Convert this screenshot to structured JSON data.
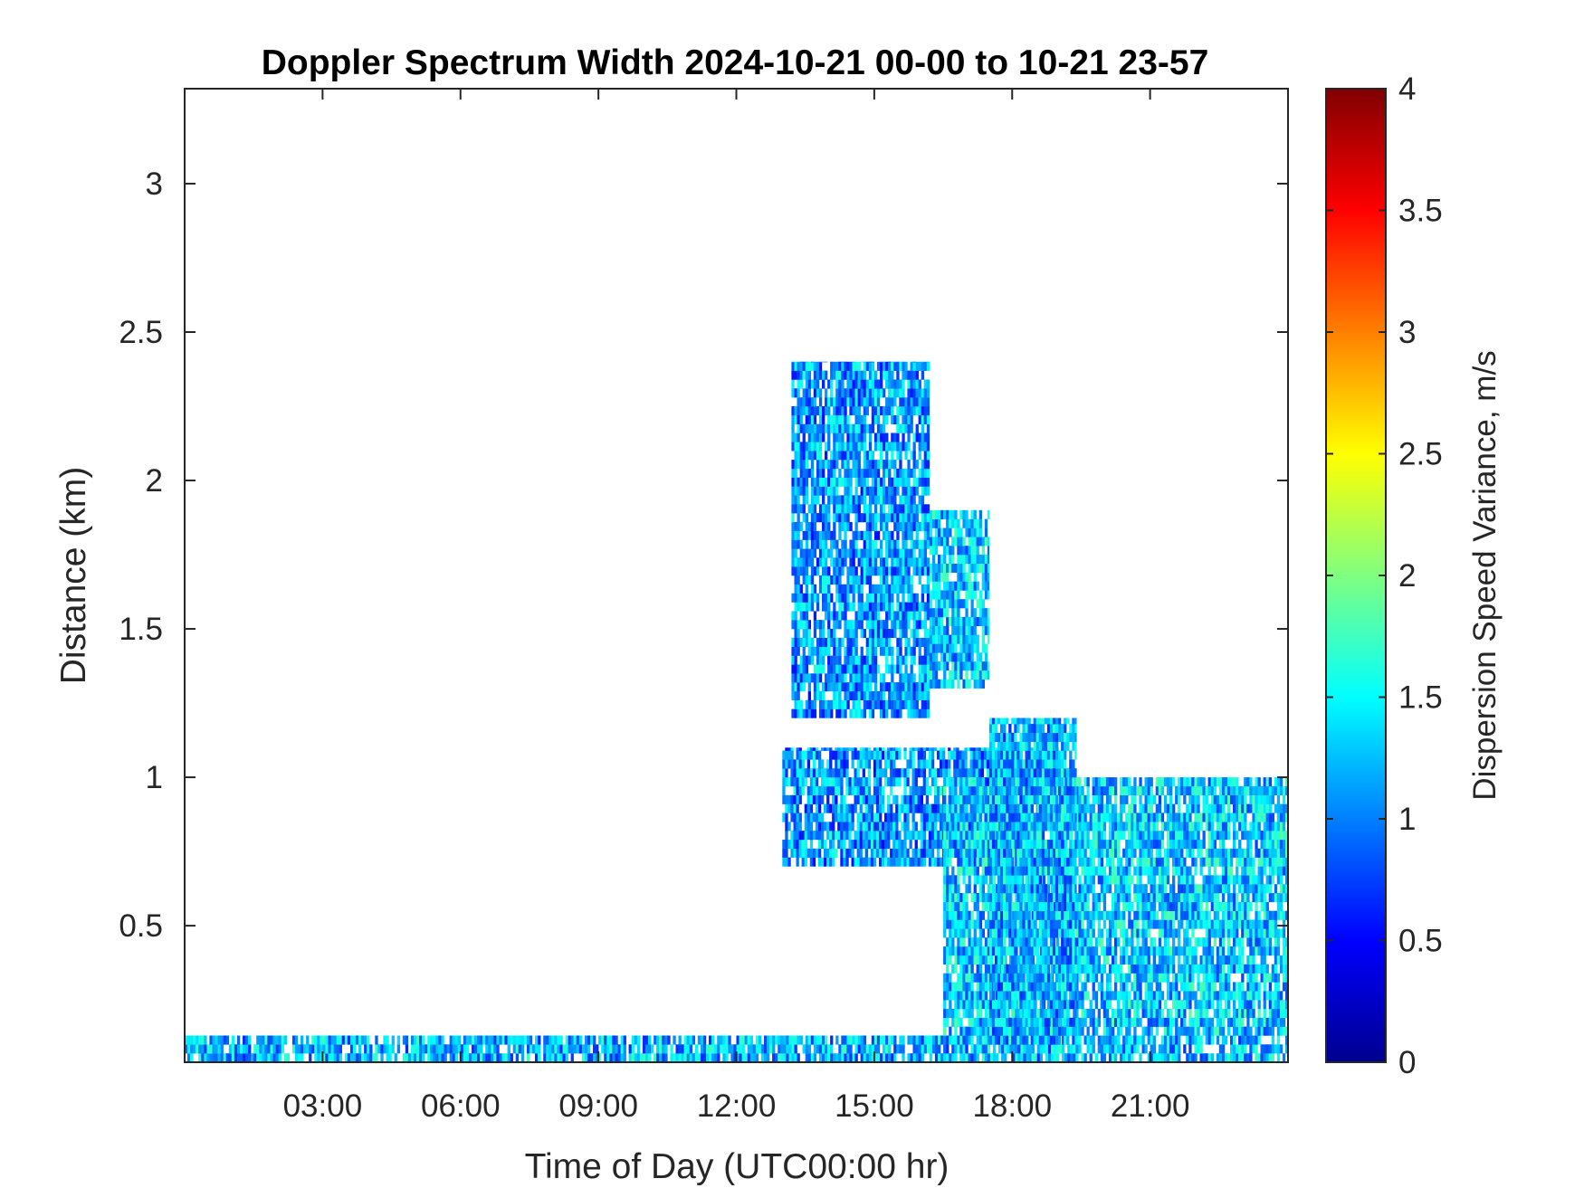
{
  "chart_data": {
    "type": "heatmap",
    "title": "Doppler Spectrum Width 2024-10-21 00-00 to 10-21 23-57",
    "xlabel": "Time of Day (UTC00:00 hr)",
    "ylabel": "Distance (km)",
    "xlim": [
      0,
      24
    ],
    "ylim": [
      0.04,
      3.32
    ],
    "x_ticks": [
      3,
      6,
      9,
      12,
      15,
      18,
      21
    ],
    "x_tick_labels": [
      "03:00",
      "06:00",
      "09:00",
      "12:00",
      "15:00",
      "18:00",
      "21:00"
    ],
    "y_ticks": [
      0.5,
      1,
      1.5,
      2,
      2.5,
      3
    ],
    "y_tick_labels": [
      "0.5",
      "1",
      "1.5",
      "2",
      "2.5",
      "3"
    ],
    "colorbar": {
      "label": "Dispersion Speed Variance, m/s",
      "colormap": "jet",
      "range": [
        0,
        4
      ],
      "ticks": [
        0,
        0.5,
        1,
        1.5,
        2,
        2.5,
        3,
        3.5,
        4
      ],
      "tick_labels": [
        "0",
        "0.5",
        "1",
        "1.5",
        "2",
        "2.5",
        "3",
        "3.5",
        "4"
      ]
    },
    "regions": [
      {
        "x": [
          0,
          24
        ],
        "y": [
          0.04,
          0.13
        ],
        "value": 1.2
      },
      {
        "x": [
          13.2,
          16.2
        ],
        "y": [
          1.2,
          2.4
        ],
        "value": 1.1
      },
      {
        "x": [
          16.2,
          17.5
        ],
        "y": [
          1.3,
          1.9
        ],
        "value": 1.3
      },
      {
        "x": [
          13,
          19
        ],
        "y": [
          0.7,
          1.1
        ],
        "value": 1.1
      },
      {
        "x": [
          16.5,
          24
        ],
        "y": [
          0.13,
          1.0
        ],
        "value": 1.3
      },
      {
        "x": [
          17.5,
          19.4
        ],
        "y": [
          0.1,
          1.2
        ],
        "value": 1.2
      }
    ],
    "grid": false,
    "legend": "none"
  }
}
